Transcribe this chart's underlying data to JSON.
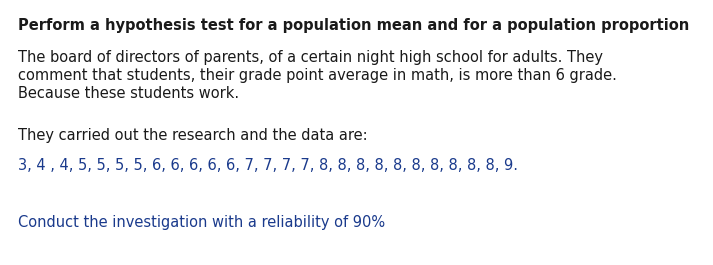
{
  "title": "Perform a hypothesis test for a population mean and for a population proportion",
  "paragraph1_line1": "The board of directors of parents, of a certain night high school for adults. They",
  "paragraph1_line2": "comment that students, their grade point average in math, is more than 6 grade.",
  "paragraph1_line3": "Because these students work.",
  "paragraph2": "They carried out the research and the data are:",
  "data_line": "3, 4 , 4, 5, 5, 5, 5, 6, 6, 6, 6, 6, 7, 7, 7, 7, 8, 8, 8, 8, 8, 8, 8, 8, 8, 8, 9.",
  "conclusion": "Conduct the investigation with a reliability of 90%",
  "title_color": "#1a1a1a",
  "body_color": "#1a1a1a",
  "highlight_color": "#1a3a8c",
  "background_color": "#ffffff",
  "title_fontsize": 10.5,
  "body_fontsize": 10.5
}
